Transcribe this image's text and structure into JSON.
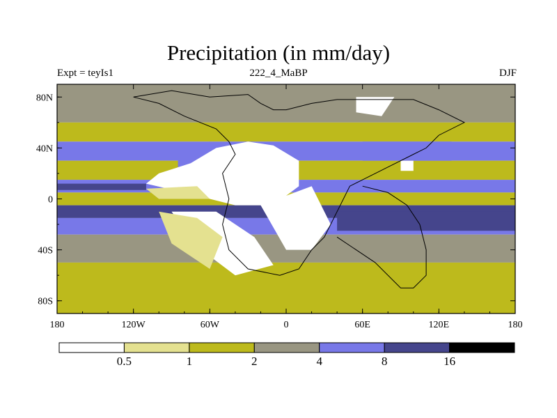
{
  "chart_data": {
    "type": "heatmap",
    "title": "Precipitation (in mm/day)",
    "subtitle_left": "Expt = teyIs1",
    "subtitle_center": "222_4_MaBP",
    "subtitle_right": "DJF",
    "projection": "cylindrical-equidistant",
    "xlim": [
      -180,
      180
    ],
    "ylim": [
      -90,
      90
    ],
    "x_ticks": [
      {
        "value": -180,
        "label": "180"
      },
      {
        "value": -120,
        "label": "120W"
      },
      {
        "value": -60,
        "label": "60W"
      },
      {
        "value": 0,
        "label": "0"
      },
      {
        "value": 60,
        "label": "60E"
      },
      {
        "value": 120,
        "label": "120E"
      },
      {
        "value": 180,
        "label": "180"
      }
    ],
    "y_ticks": [
      {
        "value": 80,
        "label": "80N"
      },
      {
        "value": 40,
        "label": "40N"
      },
      {
        "value": 0,
        "label": "0"
      },
      {
        "value": -40,
        "label": "40S"
      },
      {
        "value": -80,
        "label": "80S"
      }
    ],
    "levels": [
      0.5,
      1,
      2,
      4,
      8,
      16
    ],
    "level_labels": [
      "0.5",
      "1",
      "2",
      "4",
      "8",
      "16"
    ],
    "colors": [
      "#ffffff",
      "#e4e190",
      "#bdba1c",
      "#999682",
      "#7878e8",
      "#45458c",
      "#000000"
    ],
    "bands": [
      {
        "lat": [
          60,
          90
        ],
        "class": 3
      },
      {
        "lat": [
          45,
          60
        ],
        "class": 2
      },
      {
        "lat": [
          30,
          45
        ],
        "class": 4
      },
      {
        "lat": [
          15,
          30
        ],
        "class": 2
      },
      {
        "lat": [
          5,
          15
        ],
        "class": 4
      },
      {
        "lat": [
          -5,
          5
        ],
        "class": 2
      },
      {
        "lat": [
          -15,
          -5
        ],
        "class": 5
      },
      {
        "lat": [
          -28,
          -15
        ],
        "class": 4
      },
      {
        "lat": [
          -50,
          -28
        ],
        "class": 3
      },
      {
        "lat": [
          -90,
          -50
        ],
        "class": 2
      }
    ],
    "dry_regions": [
      {
        "points": [
          [
            -100,
            20
          ],
          [
            -75,
            28
          ],
          [
            -55,
            40
          ],
          [
            -30,
            45
          ],
          [
            -10,
            42
          ],
          [
            10,
            30
          ],
          [
            10,
            10
          ],
          [
            -10,
            -5
          ],
          [
            -40,
            -5
          ],
          [
            -80,
            5
          ],
          [
            -110,
            12
          ]
        ],
        "class": 0
      },
      {
        "points": [
          [
            -90,
            -10
          ],
          [
            -55,
            -10
          ],
          [
            -25,
            -30
          ],
          [
            -10,
            -52
          ],
          [
            -40,
            -60
          ],
          [
            -60,
            -45
          ],
          [
            -80,
            -25
          ]
        ],
        "class": 0
      },
      {
        "points": [
          [
            -20,
            -5
          ],
          [
            20,
            10
          ],
          [
            35,
            -20
          ],
          [
            20,
            -40
          ],
          [
            0,
            -40
          ]
        ],
        "class": 0
      },
      {
        "points": [
          [
            55,
            80
          ],
          [
            85,
            80
          ],
          [
            75,
            65
          ],
          [
            55,
            68
          ]
        ],
        "class": 0
      },
      {
        "points": [
          [
            90,
            30
          ],
          [
            100,
            30
          ],
          [
            100,
            22
          ],
          [
            90,
            22
          ]
        ],
        "class": 0
      },
      {
        "points": [
          [
            -110,
            8
          ],
          [
            -70,
            10
          ],
          [
            -60,
            0
          ],
          [
            -100,
            0
          ]
        ],
        "class": 1
      },
      {
        "points": [
          [
            -100,
            -10
          ],
          [
            -70,
            -15
          ],
          [
            -50,
            -30
          ],
          [
            -60,
            -55
          ],
          [
            -90,
            -35
          ]
        ],
        "class": 1
      }
    ],
    "wet_regions": [
      {
        "points": [
          [
            40,
            -10
          ],
          [
            180,
            -10
          ],
          [
            180,
            -25
          ],
          [
            40,
            -25
          ]
        ],
        "class": 5
      },
      {
        "points": [
          [
            -180,
            12
          ],
          [
            -110,
            12
          ],
          [
            -110,
            7
          ],
          [
            -180,
            7
          ]
        ],
        "class": 5
      },
      {
        "points": [
          [
            -85,
            40
          ],
          [
            -60,
            45
          ],
          [
            -60,
            28
          ],
          [
            -85,
            25
          ]
        ],
        "class": 4
      },
      {
        "points": [
          [
            60,
            45
          ],
          [
            130,
            45
          ],
          [
            130,
            30
          ],
          [
            60,
            30
          ]
        ],
        "class": 4
      }
    ],
    "coastline": [
      [
        -60,
        80
      ],
      [
        -30,
        82
      ],
      [
        -20,
        75
      ],
      [
        -10,
        70
      ],
      [
        0,
        70
      ],
      [
        20,
        75
      ],
      [
        40,
        78
      ],
      [
        70,
        78
      ],
      [
        100,
        78
      ],
      [
        120,
        70
      ],
      [
        140,
        60
      ],
      [
        120,
        50
      ],
      [
        110,
        40
      ],
      [
        100,
        35
      ],
      [
        80,
        25
      ],
      [
        60,
        15
      ],
      [
        50,
        10
      ],
      [
        45,
        0
      ],
      [
        40,
        -10
      ],
      [
        30,
        -30
      ],
      [
        20,
        -40
      ],
      [
        10,
        -55
      ],
      [
        -5,
        -60
      ],
      [
        -30,
        -55
      ],
      [
        -45,
        -40
      ],
      [
        -50,
        -20
      ],
      [
        -45,
        0
      ],
      [
        -50,
        20
      ],
      [
        -40,
        35
      ],
      [
        -45,
        45
      ],
      [
        -55,
        55
      ],
      [
        -80,
        65
      ],
      [
        -100,
        75
      ],
      [
        -120,
        80
      ],
      [
        -90,
        85
      ],
      [
        -60,
        80
      ]
    ],
    "coastline_east": [
      [
        40,
        -30
      ],
      [
        70,
        -50
      ],
      [
        90,
        -70
      ],
      [
        100,
        -70
      ],
      [
        110,
        -60
      ],
      [
        110,
        -40
      ],
      [
        105,
        -20
      ],
      [
        95,
        -5
      ],
      [
        80,
        5
      ],
      [
        60,
        10
      ]
    ]
  }
}
